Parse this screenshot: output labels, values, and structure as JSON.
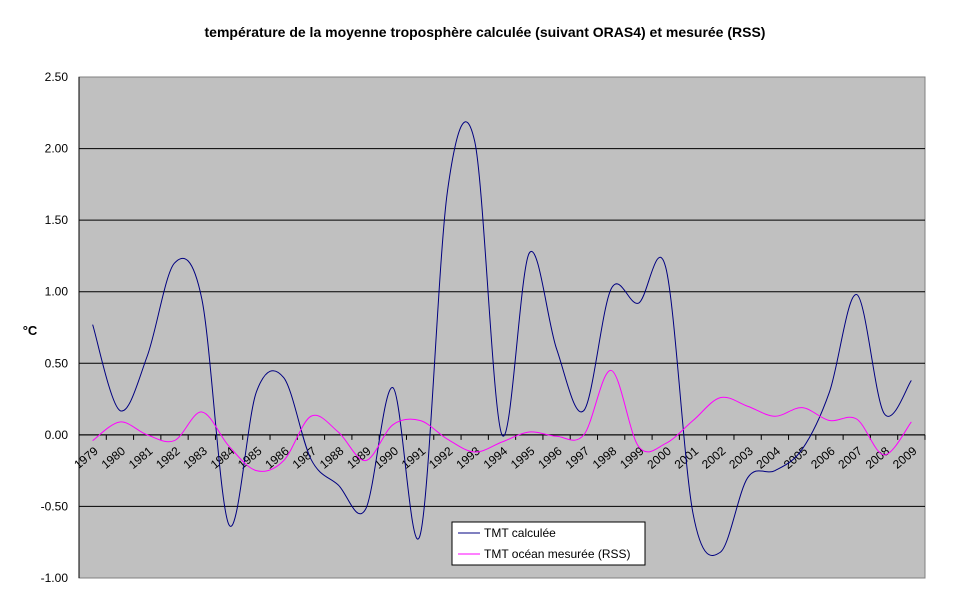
{
  "chart_data": {
    "type": "line",
    "title": "température de la moyenne troposphère calculée (suivant ORAS4) et mesurée (RSS)",
    "xlabel": "",
    "ylabel": "°C",
    "ylim": [
      -1.0,
      2.5
    ],
    "yticks": [
      "2.50",
      "2.00",
      "1.50",
      "1.00",
      "0.50",
      "0.00",
      "-0.50",
      "-1.00"
    ],
    "ytick_values": [
      2.5,
      2.0,
      1.5,
      1.0,
      0.5,
      0.0,
      -0.5,
      -1.0
    ],
    "grid": true,
    "legend_position": "bottom-center",
    "categories": [
      "1979",
      "1980",
      "1981",
      "1982",
      "1983",
      "1984",
      "1985",
      "1986",
      "1987",
      "1988",
      "1989",
      "1990",
      "1991",
      "1992",
      "1993",
      "1994",
      "1995",
      "1996",
      "1997",
      "1998",
      "1999",
      "2000",
      "2001",
      "2002",
      "2003",
      "2004",
      "2005",
      "2006",
      "2007",
      "2008",
      "2009"
    ],
    "series": [
      {
        "name": "TMT calculée",
        "color": "#000080",
        "values": [
          0.77,
          0.17,
          0.55,
          1.2,
          0.95,
          -0.63,
          0.3,
          0.4,
          -0.17,
          -0.35,
          -0.52,
          0.33,
          -0.7,
          1.7,
          2.05,
          0.0,
          1.27,
          0.6,
          0.17,
          1.02,
          0.92,
          1.17,
          -0.55,
          -0.82,
          -0.3,
          -0.25,
          -0.1,
          0.3,
          0.98,
          0.15,
          0.38
        ]
      },
      {
        "name": "TMT océan mesurée (RSS)",
        "color": "#FF00FF",
        "values": [
          -0.04,
          0.09,
          0.0,
          -0.04,
          0.16,
          -0.08,
          -0.25,
          -0.18,
          0.13,
          0.02,
          -0.18,
          0.07,
          0.1,
          -0.03,
          -0.12,
          -0.05,
          0.02,
          -0.01,
          0.0,
          0.45,
          -0.08,
          -0.06,
          0.1,
          0.26,
          0.2,
          0.13,
          0.19,
          0.1,
          0.11,
          -0.14,
          0.09
        ]
      }
    ]
  }
}
